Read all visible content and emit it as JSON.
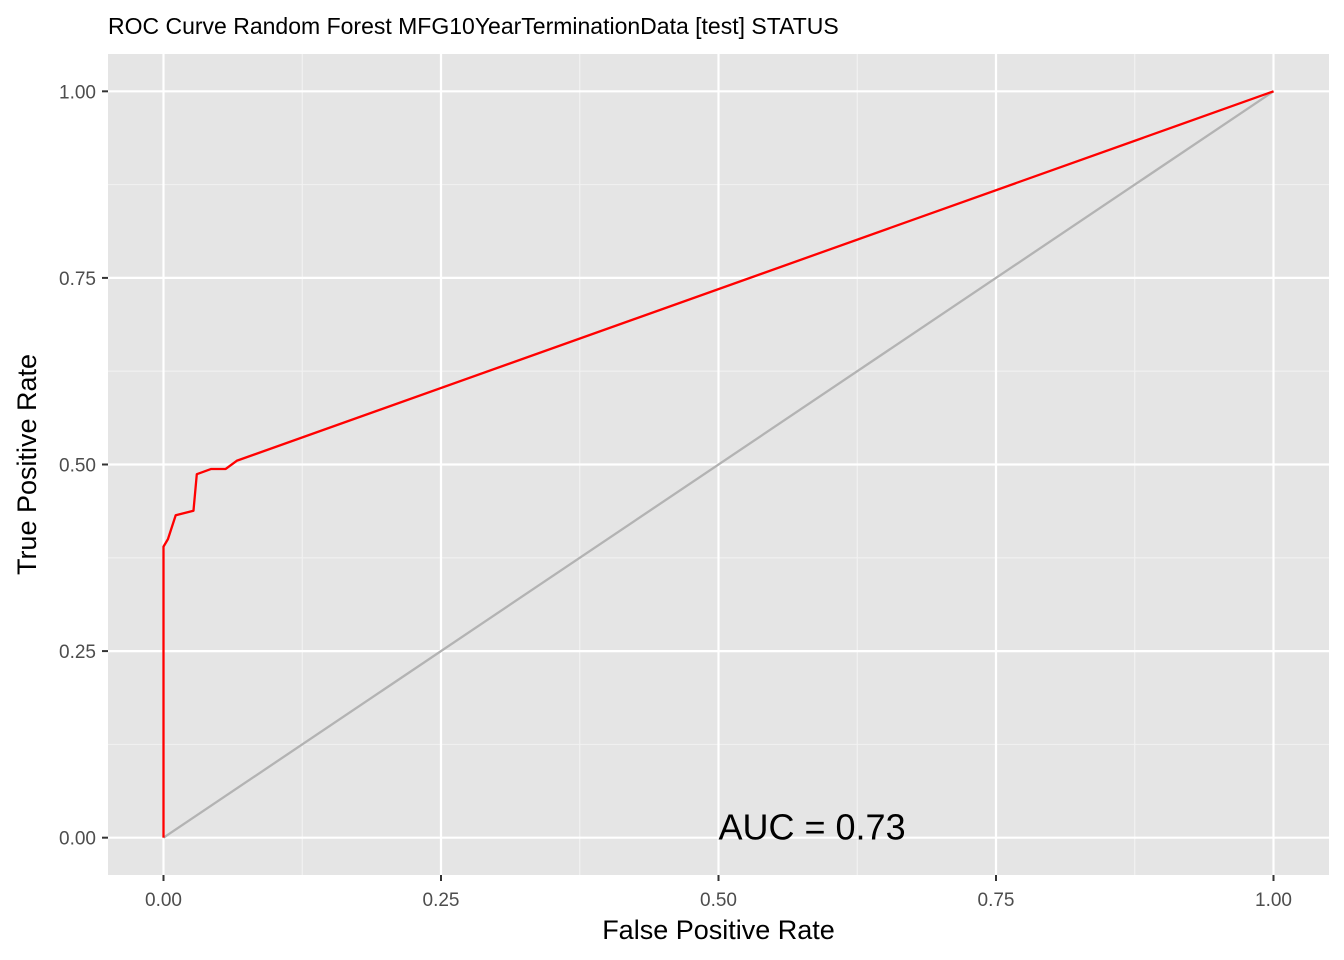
{
  "chart_data": {
    "type": "line",
    "title": "ROC Curve Random Forest MFG10YearTerminationData [test] STATUS",
    "xlabel": "False Positive Rate",
    "ylabel": "True Positive Rate",
    "xlim": [
      -0.05,
      1.05
    ],
    "ylim": [
      -0.05,
      1.05
    ],
    "x_ticks": [
      0.0,
      0.25,
      0.5,
      0.75,
      1.0
    ],
    "x_tick_labels": [
      "0.00",
      "0.25",
      "0.50",
      "0.75",
      "1.00"
    ],
    "y_ticks": [
      0.0,
      0.25,
      0.5,
      0.75,
      1.0
    ],
    "y_tick_labels": [
      "0.00",
      "0.25",
      "0.50",
      "0.75",
      "1.00"
    ],
    "x_minor_ticks": [
      0.125,
      0.375,
      0.625,
      0.875
    ],
    "y_minor_ticks": [
      0.125,
      0.375,
      0.625,
      0.875
    ],
    "grid": true,
    "background": "#e5e5e5",
    "series": [
      {
        "color": "#ff0000",
        "x": [
          0.0,
          0.0,
          0.004,
          0.011,
          0.027,
          0.03,
          0.043,
          0.056,
          0.066,
          1.0
        ],
        "y": [
          0.0,
          0.39,
          0.4,
          0.432,
          0.438,
          0.487,
          0.494,
          0.494,
          0.505,
          1.0
        ]
      },
      {
        "color": "#b3b3b3",
        "x": [
          0.0,
          1.0
        ],
        "y": [
          0.0,
          1.0
        ]
      }
    ],
    "annotations": [
      {
        "text": "AUC = 0.73",
        "x": 0.5,
        "y": 0.0
      }
    ]
  }
}
